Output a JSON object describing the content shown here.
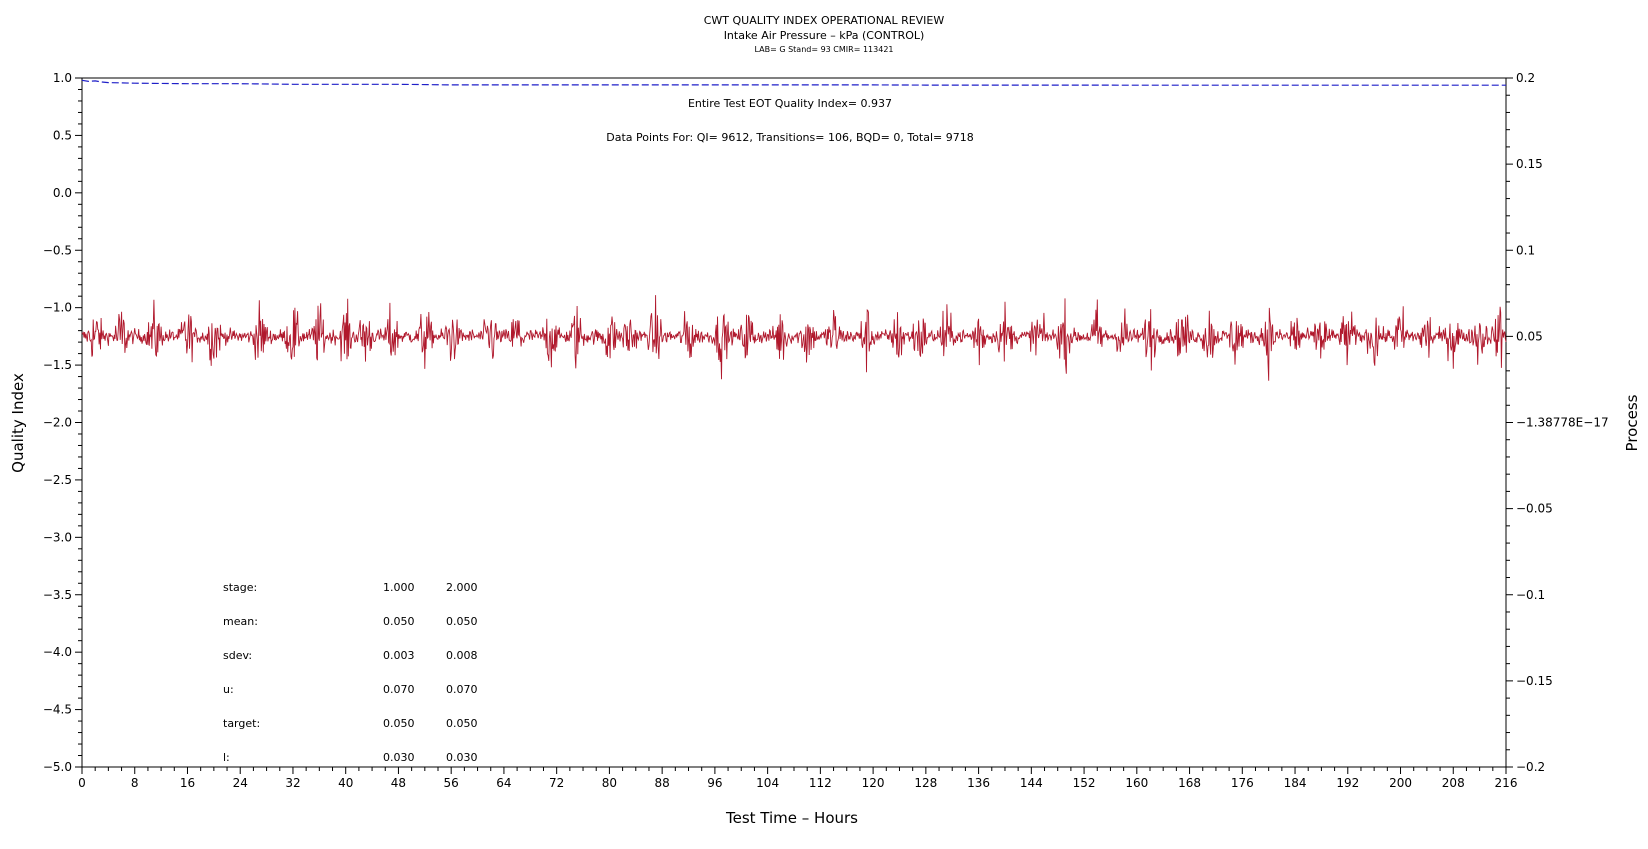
{
  "chart_data": {
    "type": "line",
    "title": "CWT QUALITY INDEX OPERATIONAL REVIEW",
    "subtitle": "Intake Air Pressure – kPa (CONTROL)",
    "subtitle2": "LAB= G Stand= 93 CMIR= 113421",
    "xlabel": "Test Time – Hours",
    "ylabel": "Quality Index",
    "y2label": "Process",
    "xlim": [
      0,
      216
    ],
    "ylim": [
      -5.0,
      1.0
    ],
    "y2lim": [
      -0.2,
      0.2
    ],
    "x_ticks": [
      "0",
      "8",
      "16",
      "24",
      "32",
      "40",
      "48",
      "56",
      "64",
      "72",
      "80",
      "88",
      "96",
      "104",
      "112",
      "120",
      "128",
      "136",
      "144",
      "152",
      "160",
      "168",
      "176",
      "184",
      "192",
      "200",
      "208",
      "216"
    ],
    "y_ticks": [
      "1.0",
      "0.5",
      "0.0",
      "−0.5",
      "−1.0",
      "−1.5",
      "−2.0",
      "−2.5",
      "−3.0",
      "−3.5",
      "−4.0",
      "−4.5",
      "−5.0"
    ],
    "y2_ticks": [
      "0.2",
      "0.15",
      "0.1",
      "0.05",
      "−1.38778E−17",
      "−0.05",
      "−0.1",
      "−0.15",
      "−0.2"
    ],
    "annotations": [
      "Entire Test EOT Quality Index=   0.937",
      "Data Points For: QI=  9612, Transitions=    106, BQD=      0, Total=  9718"
    ],
    "stats_table": {
      "rows": [
        {
          "label": "stage:",
          "values": [
            "1.000",
            "2.000"
          ]
        },
        {
          "label": "mean:",
          "values": [
            "0.050",
            "0.050"
          ]
        },
        {
          "label": "sdev:",
          "values": [
            "0.003",
            "0.008"
          ]
        },
        {
          "label": "u:",
          "values": [
            "0.070",
            "0.070"
          ]
        },
        {
          "label": "target:",
          "values": [
            "0.050",
            "0.050"
          ]
        },
        {
          "label": "l:",
          "values": [
            "0.030",
            "0.030"
          ]
        }
      ]
    },
    "series": [
      {
        "name": "",
        "axis": "left",
        "color": "#1f1fc8",
        "style": "dashed",
        "x": [
          0,
          1,
          2,
          3,
          4,
          8,
          16,
          24,
          32,
          40,
          48,
          56,
          64,
          72,
          80,
          88,
          96,
          104,
          112,
          120,
          128,
          136,
          144,
          152,
          160,
          168,
          176,
          184,
          192,
          200,
          208,
          216
        ],
        "y": [
          0.98,
          0.97,
          0.975,
          0.965,
          0.96,
          0.955,
          0.95,
          0.95,
          0.945,
          0.945,
          0.945,
          0.94,
          0.94,
          0.94,
          0.94,
          0.94,
          0.94,
          0.94,
          0.94,
          0.94,
          0.938,
          0.938,
          0.938,
          0.938,
          0.937,
          0.937,
          0.937,
          0.937,
          0.937,
          0.937,
          0.937,
          0.937
        ]
      },
      {
        "name": "",
        "axis": "right",
        "color": "#b0182c",
        "style": "solid",
        "mean": 0.05,
        "noise_sdev": 0.003,
        "transition_hours": [
          2,
          6,
          11,
          16,
          20,
          27,
          32,
          36,
          40,
          43,
          47,
          52,
          56,
          62,
          66,
          71,
          75,
          80,
          83,
          87,
          92,
          97,
          101,
          106,
          110,
          114,
          119,
          124,
          127,
          131,
          136,
          140,
          145,
          149,
          154,
          158,
          162,
          167,
          171,
          175,
          180,
          184,
          188,
          192,
          196,
          200,
          204,
          208,
          212,
          215
        ],
        "transition_amplitude": 0.012
      }
    ]
  }
}
